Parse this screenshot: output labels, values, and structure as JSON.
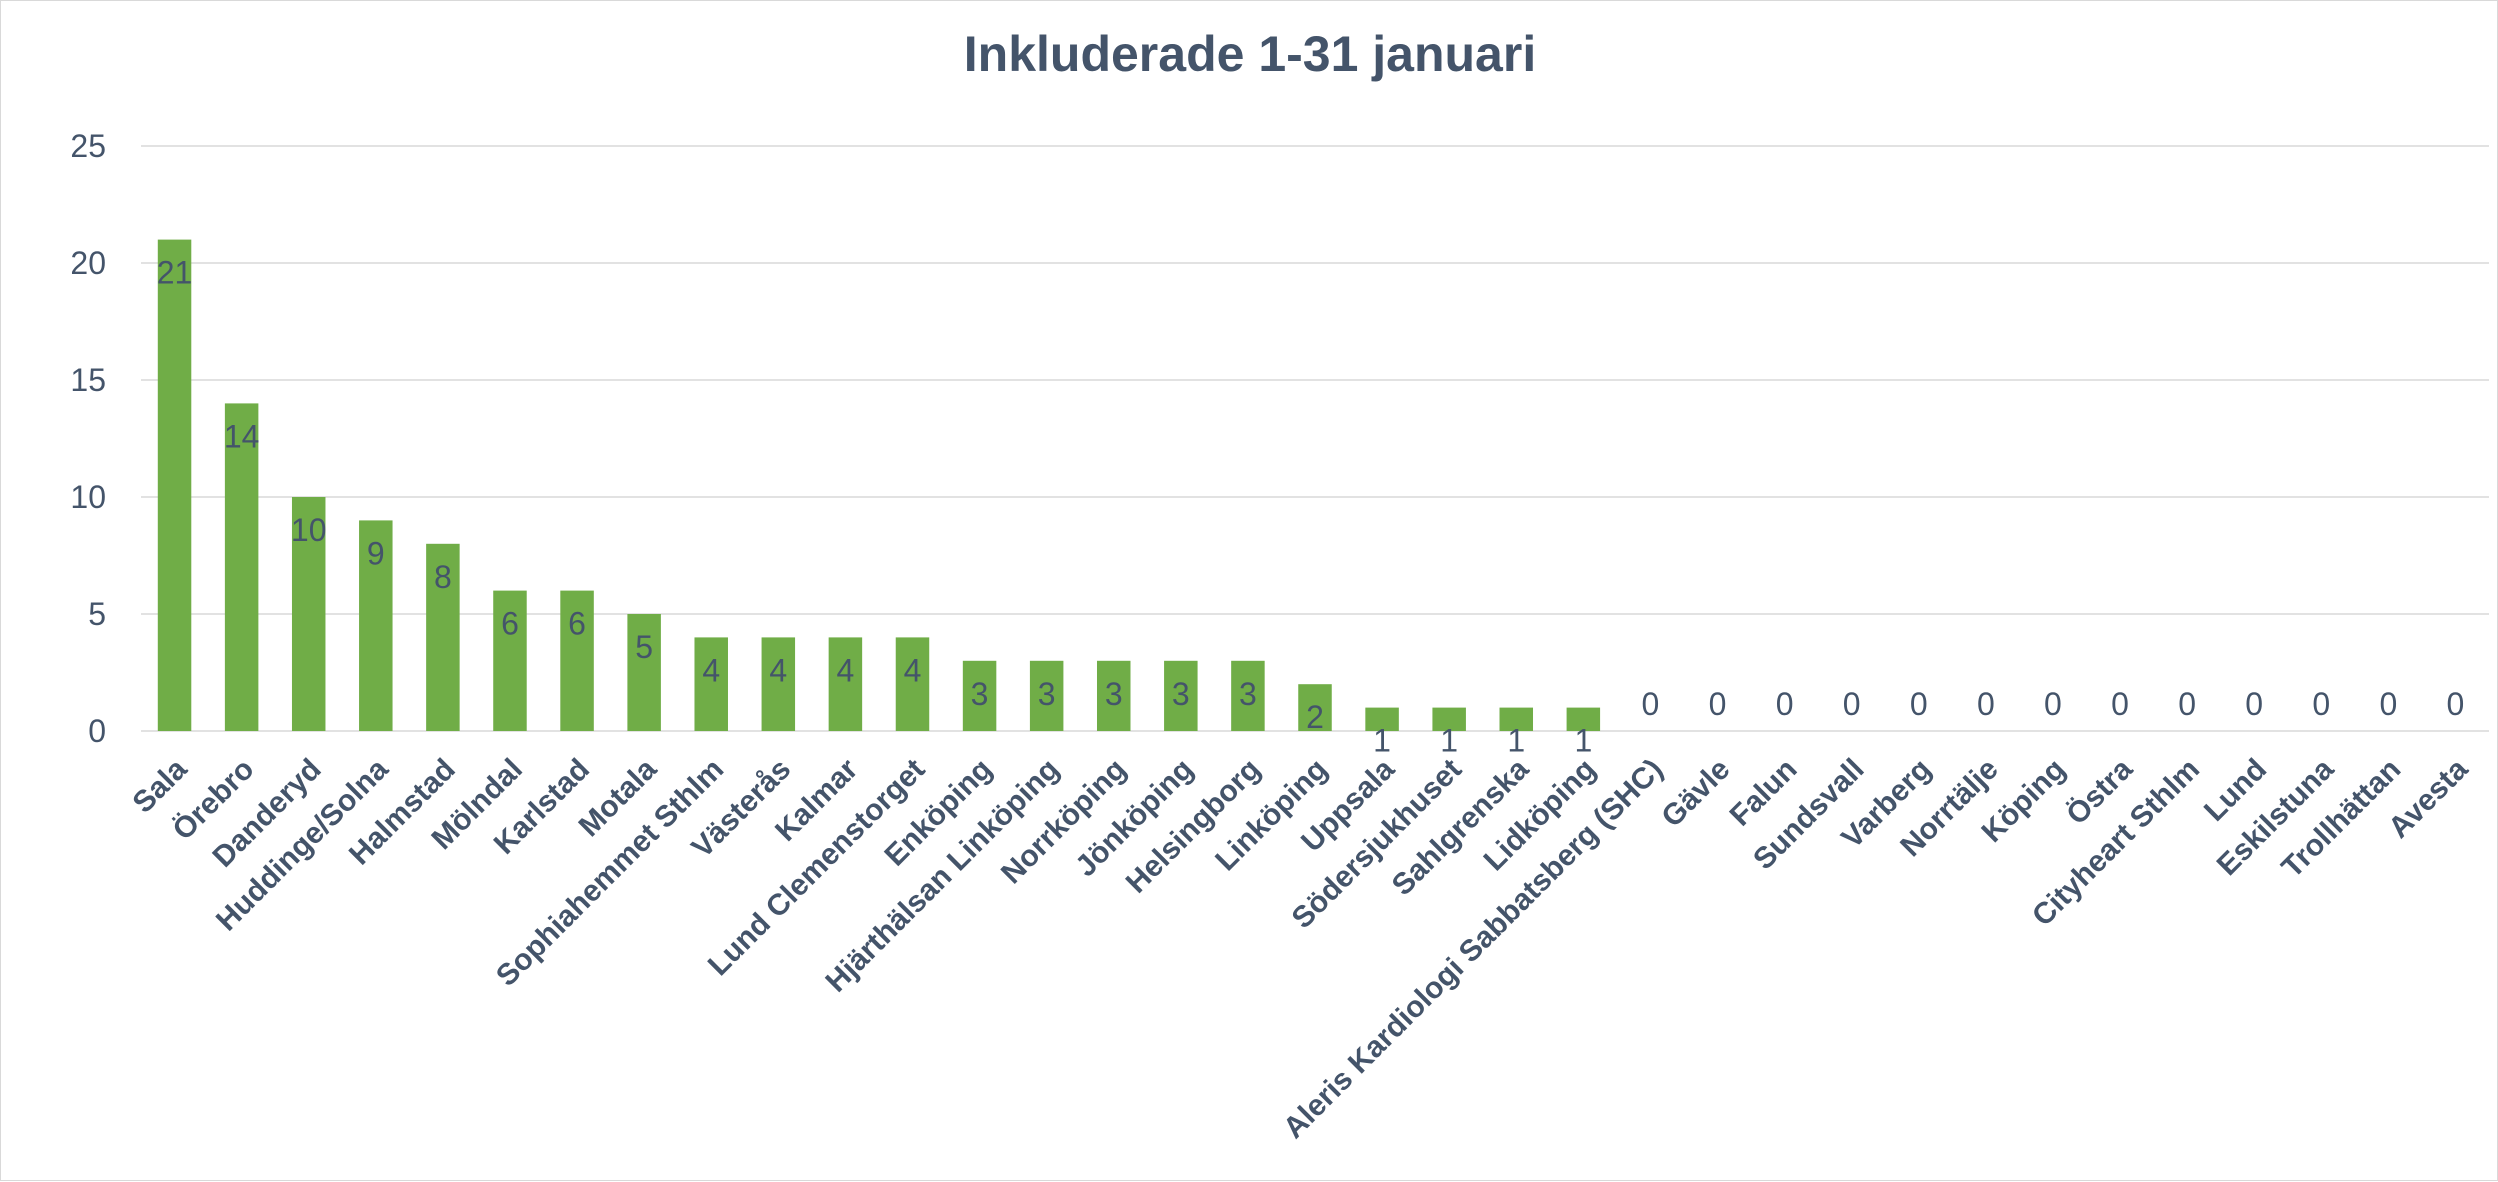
{
  "chart_data": {
    "type": "bar",
    "title": "Inkluderade 1-31 januari",
    "xlabel": "",
    "ylabel": "",
    "ylim": [
      0,
      25
    ],
    "yticks": [
      0,
      5,
      10,
      15,
      20,
      25
    ],
    "grid": true,
    "legend": "none",
    "bar_color": "#70ad47",
    "text_color": "#44546a",
    "categories": [
      "Sala",
      "Örebro",
      "Danderyd",
      "Huddinge/Solna",
      "Halmstad",
      "Mölndal",
      "Karlstad",
      "Motala",
      "Sophiahemmet Sthlm",
      "Västerås",
      "Kalmar",
      "Lund Clemenstorget",
      "Enköping",
      "Hjärthälsan Linköping",
      "Norrköping",
      "Jönköping",
      "Helsingborg",
      "Linköping",
      "Uppsala",
      "Södersjukhuset",
      "Sahlgrenska",
      "Lidköping",
      "Aleris Kardiologi Sabbatsberg (SHC)",
      "Gävle",
      "Falun",
      "Sundsvall",
      "Varberg",
      "Norrtälje",
      "Köping",
      "Östra",
      "Cityheart Sthlm",
      "Lund",
      "Eskilstuna",
      "Trollhättan",
      "Avesta"
    ],
    "values": [
      21,
      14,
      10,
      9,
      8,
      6,
      6,
      5,
      4,
      4,
      4,
      4,
      3,
      3,
      3,
      3,
      3,
      2,
      1,
      1,
      1,
      1,
      0,
      0,
      0,
      0,
      0,
      0,
      0,
      0,
      0,
      0,
      0,
      0,
      0
    ]
  }
}
